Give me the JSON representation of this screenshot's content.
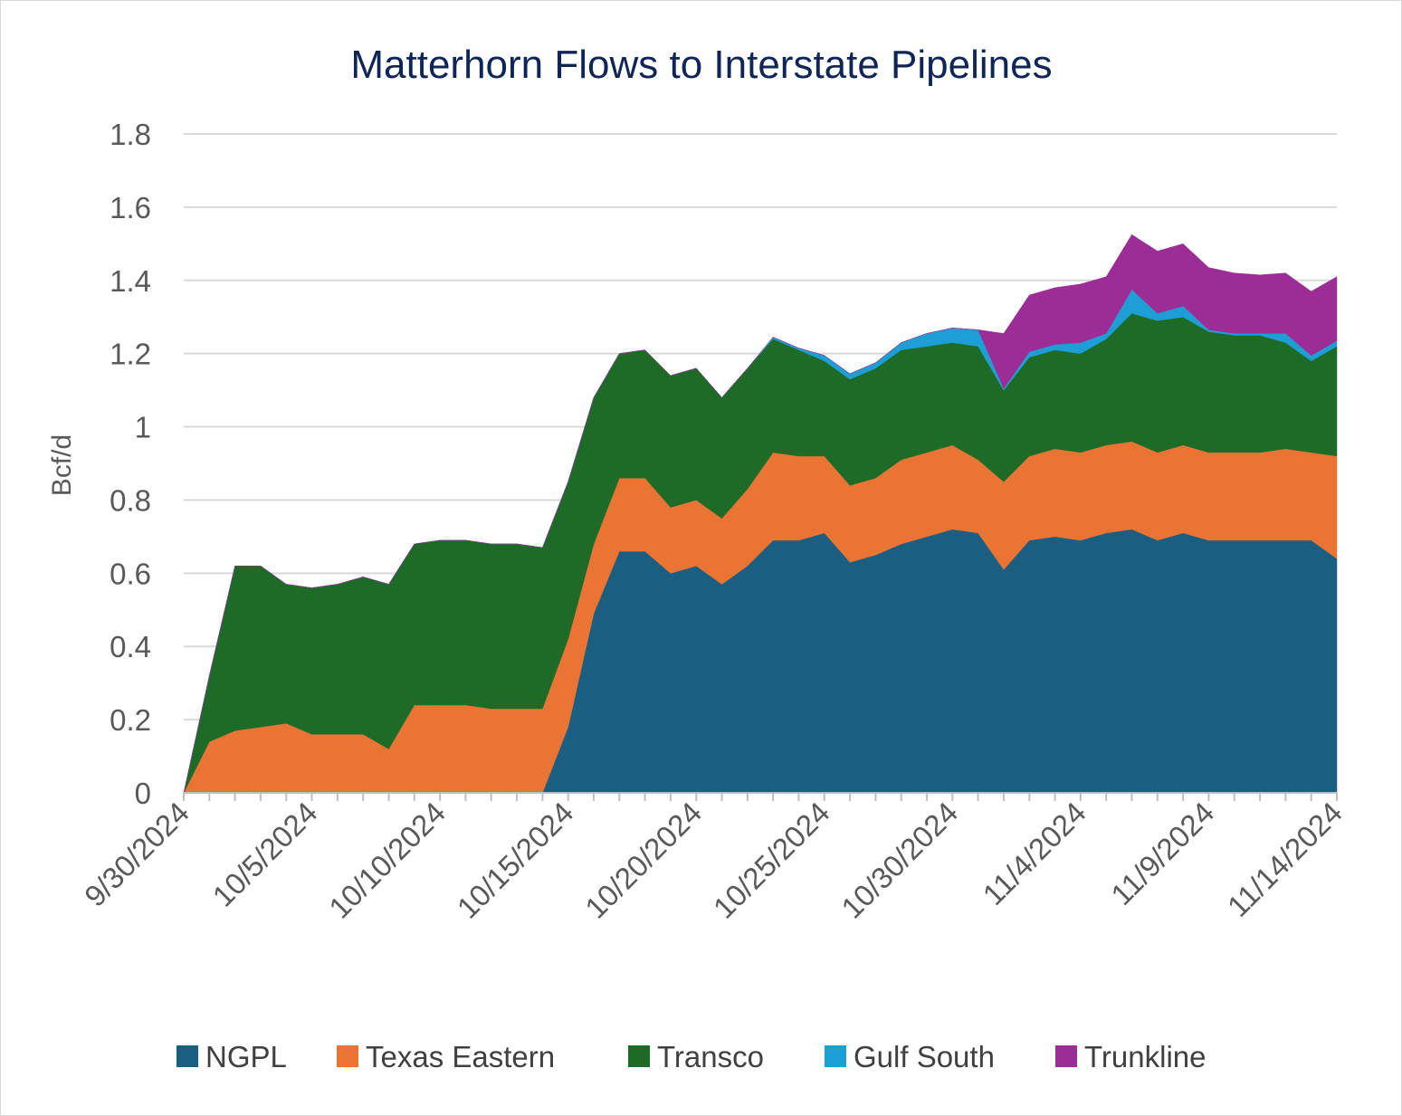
{
  "chart_data": {
    "type": "area",
    "stacked": true,
    "title": "Matterhorn Flows to Interstate Pipelines",
    "xlabel": "",
    "ylabel": "Bcf/d",
    "ylim": [
      0,
      1.8
    ],
    "yticks": [
      "0",
      "0.2",
      "0.4",
      "0.6",
      "0.8",
      "1",
      "1.2",
      "1.4",
      "1.6",
      "1.8"
    ],
    "x_start": "9/30/2024",
    "x_tick_labels": [
      "9/30/2024",
      "10/5/2024",
      "10/10/2024",
      "10/15/2024",
      "10/20/2024",
      "10/25/2024",
      "10/30/2024",
      "11/4/2024",
      "11/9/2024",
      "11/14/2024"
    ],
    "legend_position": "bottom",
    "grid": "horizontal",
    "series": [
      {
        "name": "NGPL",
        "color": "#1a5e82",
        "values": [
          0,
          0,
          0,
          0,
          0,
          0,
          0,
          0,
          0,
          0,
          0,
          0,
          0,
          0,
          0,
          0.18,
          0.49,
          0.66,
          0.66,
          0.6,
          0.62,
          0.57,
          0.62,
          0.69,
          0.69,
          0.71,
          0.63,
          0.65,
          0.68,
          0.7,
          0.72,
          0.71,
          0.61,
          0.69,
          0.7,
          0.69,
          0.71,
          0.72,
          0.69,
          0.71,
          0.69,
          0.69,
          0.69,
          0.69,
          0.69,
          0.64
        ]
      },
      {
        "name": "Texas Eastern",
        "color": "#ea7434",
        "values": [
          0,
          0.14,
          0.17,
          0.18,
          0.19,
          0.16,
          0.16,
          0.16,
          0.12,
          0.24,
          0.24,
          0.24,
          0.23,
          0.23,
          0.23,
          0.24,
          0.19,
          0.2,
          0.2,
          0.18,
          0.18,
          0.18,
          0.21,
          0.24,
          0.23,
          0.21,
          0.21,
          0.21,
          0.23,
          0.23,
          0.23,
          0.2,
          0.24,
          0.23,
          0.24,
          0.24,
          0.24,
          0.24,
          0.24,
          0.24,
          0.24,
          0.24,
          0.24,
          0.25,
          0.24,
          0.28
        ]
      },
      {
        "name": "Transco",
        "color": "#1e6b27",
        "values": [
          0,
          0.18,
          0.45,
          0.44,
          0.38,
          0.4,
          0.41,
          0.43,
          0.45,
          0.44,
          0.45,
          0.45,
          0.45,
          0.45,
          0.44,
          0.43,
          0.4,
          0.34,
          0.35,
          0.36,
          0.36,
          0.33,
          0.33,
          0.31,
          0.29,
          0.26,
          0.29,
          0.3,
          0.3,
          0.29,
          0.28,
          0.31,
          0.25,
          0.27,
          0.27,
          0.27,
          0.29,
          0.35,
          0.36,
          0.35,
          0.33,
          0.32,
          0.32,
          0.29,
          0.25,
          0.3
        ]
      },
      {
        "name": "Gulf South",
        "color": "#1d9fd6",
        "values": [
          0,
          0,
          0,
          0,
          0,
          0,
          0,
          0,
          0,
          0,
          0,
          0,
          0,
          0,
          0,
          0,
          0,
          0,
          0,
          0,
          0,
          0,
          0,
          0.005,
          0.005,
          0.015,
          0.015,
          0.015,
          0.02,
          0.035,
          0.04,
          0.045,
          0.005,
          0.015,
          0.015,
          0.03,
          0.015,
          0.065,
          0.02,
          0.03,
          0.005,
          0.005,
          0.005,
          0.025,
          0.015,
          0.015
        ]
      },
      {
        "name": "Trunkline",
        "color": "#9c2d96",
        "values": [
          0,
          0,
          0,
          0,
          0,
          0,
          0,
          0,
          0,
          0,
          0,
          0,
          0,
          0,
          0,
          0,
          0,
          0,
          0,
          0,
          0,
          0,
          0,
          0,
          0,
          0,
          0,
          0,
          0,
          0,
          0,
          0,
          0.15,
          0.155,
          0.155,
          0.16,
          0.155,
          0.15,
          0.17,
          0.17,
          0.17,
          0.165,
          0.16,
          0.165,
          0.175,
          0.175
        ]
      }
    ]
  }
}
